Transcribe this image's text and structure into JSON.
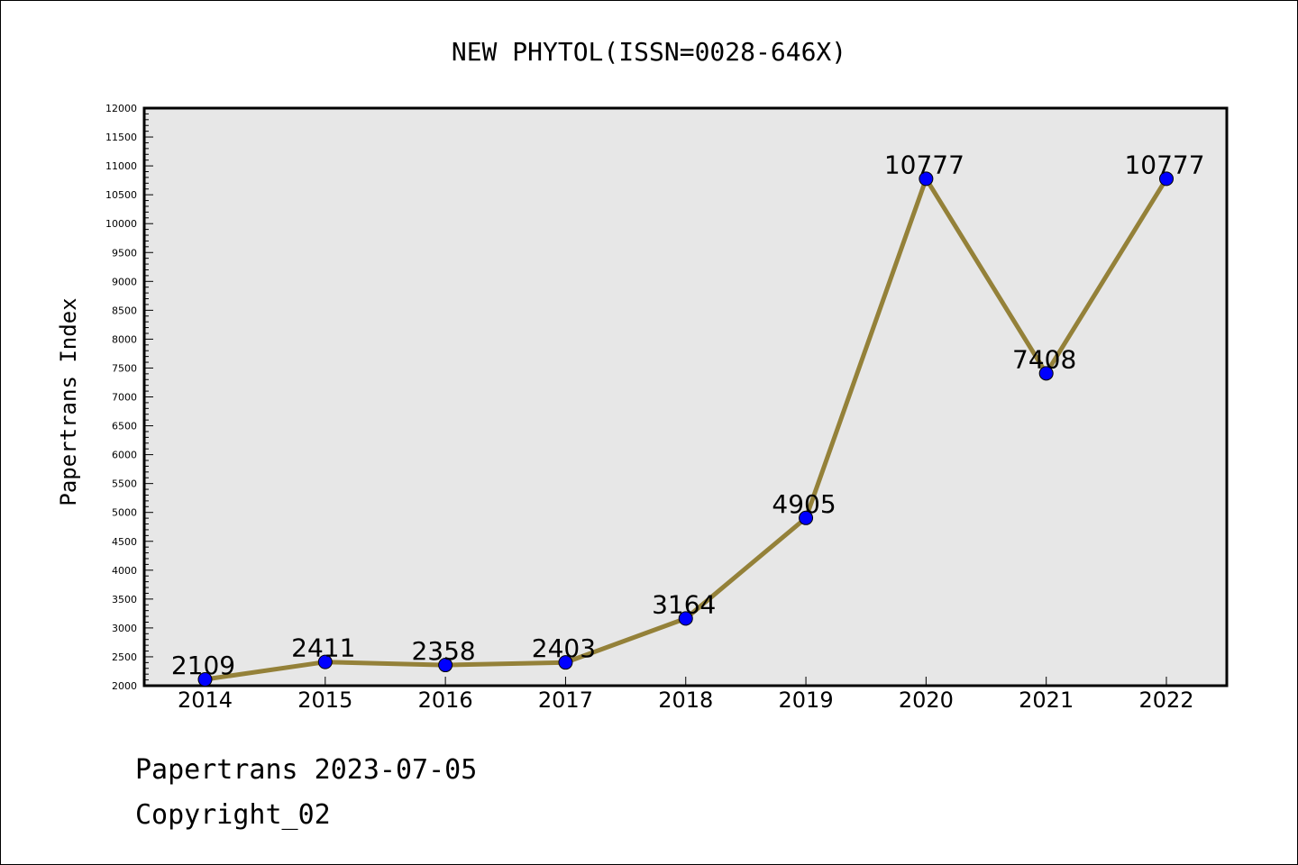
{
  "chart_data": {
    "type": "line",
    "title": "NEW PHYTOL(ISSN=0028-646X)",
    "xlabel": "",
    "ylabel": "Papertrans Index",
    "categories": [
      "2014",
      "2015",
      "2016",
      "2017",
      "2018",
      "2019",
      "2020",
      "2021",
      "2022"
    ],
    "series": [
      {
        "values": [
          2109,
          2411,
          2358,
          2403,
          3164,
          4905,
          10777,
          7408,
          10777
        ],
        "line_color": "#948139",
        "marker_color": "#0000ff"
      }
    ],
    "ylim": [
      2000,
      12000
    ],
    "y_ticks": [
      "2000",
      "2500",
      "3000",
      "3500",
      "4000",
      "4500",
      "5000",
      "5500",
      "6000",
      "6500",
      "7000",
      "7500",
      "8000",
      "8500",
      "9000",
      "9500",
      "10000",
      "10500",
      "11000",
      "11500",
      "12000"
    ],
    "data_labels": [
      "2109",
      "2411",
      "2358",
      "2403",
      "3164",
      "4905",
      "10777",
      "7408",
      "10777"
    ],
    "plot_background": "#e7e7e7",
    "grid": false,
    "legend": "none"
  },
  "footer": {
    "line1": "Papertrans 2023-07-05",
    "line2": "Copyright_02"
  }
}
